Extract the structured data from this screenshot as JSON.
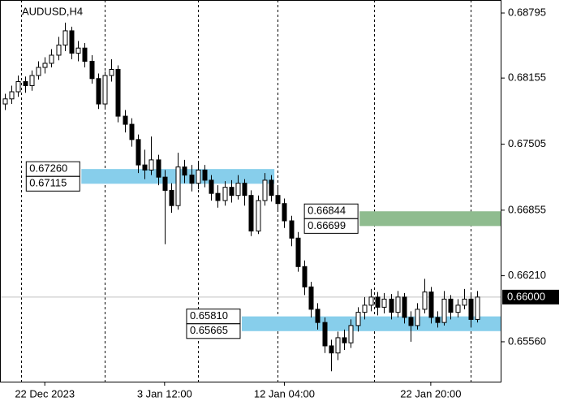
{
  "chart_data": {
    "type": "candlestick",
    "title": "AUDUSD,H4",
    "open": [
      0.679,
      0.6795,
      0.6802,
      0.6812,
      0.6808,
      0.6818,
      0.6826,
      0.683,
      0.6838,
      0.6848,
      0.6862,
      0.684,
      0.6845,
      0.6832,
      0.6815,
      0.679,
      0.6818,
      0.6824,
      0.6778,
      0.677,
      0.6755,
      0.673,
      0.6725,
      0.6735,
      0.6718,
      0.6705,
      0.669,
      0.6728,
      0.672,
      0.6712,
      0.6725,
      0.6715,
      0.6702,
      0.6695,
      0.6708,
      0.67,
      0.6712,
      0.67,
      0.6665,
      0.6695,
      0.6715,
      0.67,
      0.6692,
      0.6675,
      0.6658,
      0.663,
      0.661,
      0.6588,
      0.6575,
      0.6552,
      0.6545,
      0.656,
      0.6555,
      0.6572,
      0.6585,
      0.6592,
      0.66,
      0.659,
      0.6598,
      0.6585,
      0.66,
      0.658,
      0.6572,
      0.6588,
      0.6605,
      0.658,
      0.6575,
      0.6598,
      0.6585,
      0.6592,
      0.6598,
      0.6578
    ],
    "high": [
      0.68,
      0.6808,
      0.6818,
      0.6817,
      0.6823,
      0.6832,
      0.6836,
      0.6844,
      0.6856,
      0.687,
      0.6866,
      0.6852,
      0.685,
      0.6838,
      0.682,
      0.6822,
      0.6834,
      0.6828,
      0.6784,
      0.6776,
      0.676,
      0.6745,
      0.6758,
      0.674,
      0.6725,
      0.6712,
      0.6742,
      0.6735,
      0.673,
      0.6732,
      0.673,
      0.672,
      0.671,
      0.6714,
      0.6715,
      0.672,
      0.6716,
      0.6705,
      0.67,
      0.6722,
      0.672,
      0.671,
      0.6697,
      0.668,
      0.6664,
      0.6636,
      0.6615,
      0.6594,
      0.658,
      0.6558,
      0.6566,
      0.6568,
      0.6578,
      0.659,
      0.66,
      0.6608,
      0.6605,
      0.6604,
      0.6603,
      0.6606,
      0.6604,
      0.6586,
      0.6594,
      0.6618,
      0.661,
      0.6586,
      0.6606,
      0.6602,
      0.6598,
      0.6608,
      0.6603,
      0.6606
    ],
    "low": [
      0.6784,
      0.679,
      0.6797,
      0.6801,
      0.6803,
      0.6814,
      0.682,
      0.6826,
      0.6833,
      0.6842,
      0.6834,
      0.6832,
      0.6826,
      0.681,
      0.6785,
      0.6786,
      0.6812,
      0.6772,
      0.6762,
      0.6748,
      0.6722,
      0.6716,
      0.672,
      0.671,
      0.6652,
      0.6683,
      0.6686,
      0.6712,
      0.6704,
      0.6706,
      0.6708,
      0.6695,
      0.6688,
      0.669,
      0.6693,
      0.6696,
      0.669,
      0.666,
      0.6662,
      0.669,
      0.6694,
      0.6685,
      0.6668,
      0.665,
      0.6625,
      0.6602,
      0.658,
      0.6568,
      0.6545,
      0.6527,
      0.6538,
      0.6548,
      0.655,
      0.6566,
      0.6578,
      0.6586,
      0.6582,
      0.6584,
      0.6578,
      0.658,
      0.6574,
      0.6556,
      0.6568,
      0.6584,
      0.6574,
      0.657,
      0.6572,
      0.6578,
      0.658,
      0.6588,
      0.657,
      0.6575
    ],
    "close": [
      0.6795,
      0.6802,
      0.6812,
      0.6808,
      0.6818,
      0.6826,
      0.683,
      0.6838,
      0.6848,
      0.6862,
      0.684,
      0.6845,
      0.6832,
      0.6815,
      0.679,
      0.6818,
      0.6824,
      0.6778,
      0.677,
      0.6755,
      0.673,
      0.6725,
      0.6735,
      0.6718,
      0.6705,
      0.669,
      0.6728,
      0.672,
      0.6712,
      0.6725,
      0.6715,
      0.6702,
      0.6695,
      0.6708,
      0.67,
      0.6712,
      0.67,
      0.6665,
      0.6695,
      0.6715,
      0.67,
      0.6692,
      0.6675,
      0.6658,
      0.663,
      0.661,
      0.6588,
      0.6575,
      0.6552,
      0.6545,
      0.656,
      0.6555,
      0.6572,
      0.6585,
      0.6592,
      0.66,
      0.659,
      0.6598,
      0.6585,
      0.66,
      0.658,
      0.6572,
      0.6588,
      0.6605,
      0.658,
      0.6575,
      0.6598,
      0.6585,
      0.6592,
      0.6598,
      0.6578,
      0.66
    ],
    "xlim": [
      -0.73,
      74.5
    ],
    "xticks": [
      {
        "value": 6,
        "label": "22 Dec 2023"
      },
      {
        "value": 24,
        "label": "3 Jan 12:00"
      },
      {
        "value": 42,
        "label": "12 Jan 04:00"
      },
      {
        "value": 64,
        "label": "22 Jan 20:00"
      }
    ],
    "xgrid": [
      2.5,
      15,
      29,
      41,
      55.5,
      70
    ],
    "ylim": [
      0.65168,
      0.68923
    ],
    "yticks": [
      {
        "value": 0.68795,
        "label": "0.68795"
      },
      {
        "value": 0.68155,
        "label": "0.68155"
      },
      {
        "value": 0.67505,
        "label": "0.67505"
      },
      {
        "value": 0.66855,
        "label": "0.66855"
      },
      {
        "value": 0.6621,
        "label": "0.66210"
      },
      {
        "value": 0.6556,
        "label": "0.65560"
      }
    ],
    "current_price": {
      "value": 0.66,
      "label": "0.66000"
    },
    "zones": [
      {
        "high": {
          "value": 0.6726,
          "label": "0.67260"
        },
        "low": {
          "value": 0.67115,
          "label": "0.67115"
        },
        "start": 11.5,
        "end": 40.5,
        "color": "#87ceeb"
      },
      {
        "high": {
          "value": 0.66844,
          "label": "0.66844"
        },
        "low": {
          "value": 0.66699,
          "label": "0.66699"
        },
        "start": 53.3,
        "end": 74.5,
        "color": "#8fbc8f"
      },
      {
        "high": {
          "value": 0.6581,
          "label": "0.65810"
        },
        "low": {
          "value": 0.65665,
          "label": "0.65665"
        },
        "start": 35.6,
        "end": 74.5,
        "color": "#87ceeb"
      }
    ],
    "bull_color": "#ffffff",
    "bear_color": "#000000"
  }
}
